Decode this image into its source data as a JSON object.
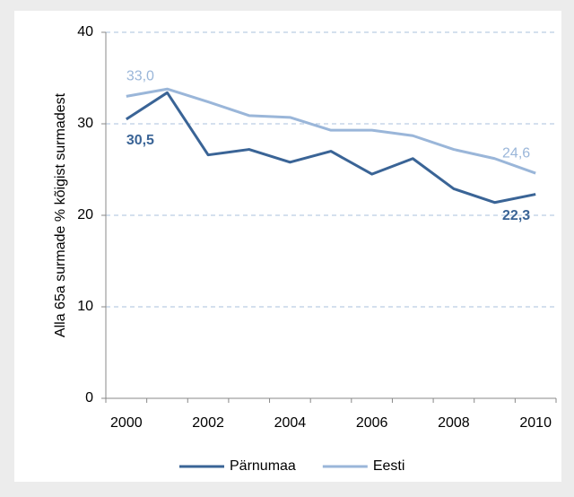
{
  "chart_data": {
    "type": "line",
    "y_label": "Alla 65a surmade % kõigist surmadest",
    "categories": [
      "2000",
      null,
      "2002",
      null,
      "2004",
      null,
      "2006",
      null,
      "2008",
      null,
      "2010"
    ],
    "series": [
      {
        "name": "Pärnumaa",
        "color": "#3a6496",
        "values": [
          30.5,
          33.4,
          26.6,
          27.2,
          25.8,
          27.0,
          24.5,
          26.2,
          22.9,
          21.4,
          22.3
        ],
        "value_labels": [
          "30,5",
          null,
          null,
          null,
          null,
          null,
          null,
          null,
          null,
          null,
          "22,3"
        ]
      },
      {
        "name": "Eesti",
        "color": "#9ab6d9",
        "values": [
          33.0,
          33.8,
          32.4,
          30.9,
          30.7,
          29.3,
          29.3,
          28.7,
          27.2,
          26.2,
          24.6
        ],
        "value_labels": [
          "33,0",
          null,
          null,
          null,
          null,
          null,
          null,
          null,
          null,
          null,
          "24,6"
        ]
      }
    ],
    "ylim": [
      0,
      40
    ],
    "yticks": [
      0,
      10,
      20,
      30,
      40
    ],
    "grid": true,
    "legend": "bottom"
  }
}
